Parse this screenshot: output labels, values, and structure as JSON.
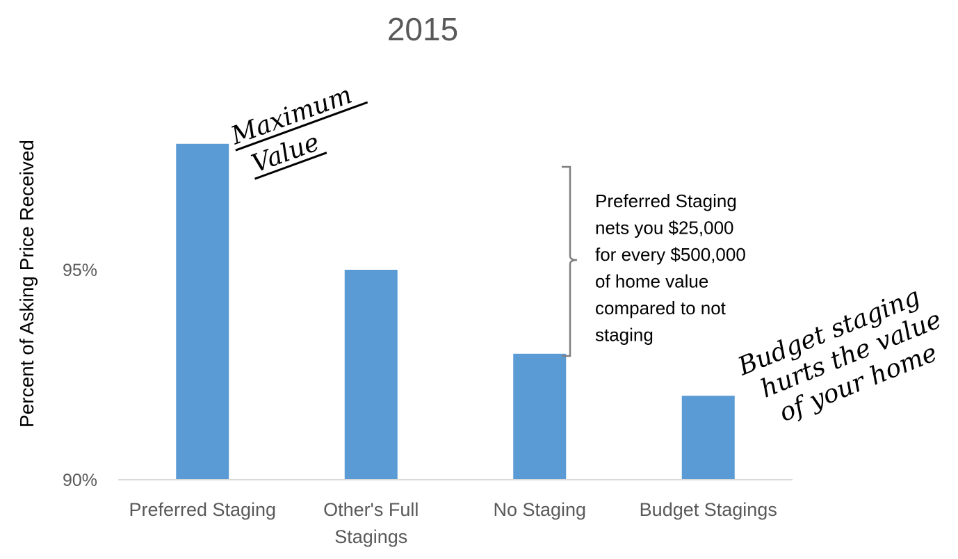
{
  "chart_data": {
    "type": "bar",
    "title": "2015",
    "xlabel": "",
    "ylabel": "Percent of Asking Price Received",
    "categories": [
      [
        "Preferred Staging"
      ],
      [
        "Other's Full",
        "Stagings"
      ],
      [
        "No Staging"
      ],
      [
        "Budget Stagings"
      ]
    ],
    "values": [
      98.0,
      95.0,
      93.0,
      92.0
    ],
    "ylim": [
      90,
      100
    ],
    "yticks": [
      {
        "value": 90,
        "label": "90%"
      },
      {
        "value": 95,
        "label": "95%"
      }
    ],
    "bar_color": "#5b9bd5",
    "axis_color": "#d9d9d9",
    "grid": false,
    "legend": "none",
    "annotations": {
      "max_value": [
        "Maximum",
        "Value"
      ],
      "bracket_text": [
        "Preferred Staging",
        "nets you $25,000",
        "for every $500,000",
        "of home value",
        "compared to not",
        "staging"
      ],
      "budget_note": [
        "Budget staging",
        "hurts the value",
        "of your home"
      ]
    }
  }
}
